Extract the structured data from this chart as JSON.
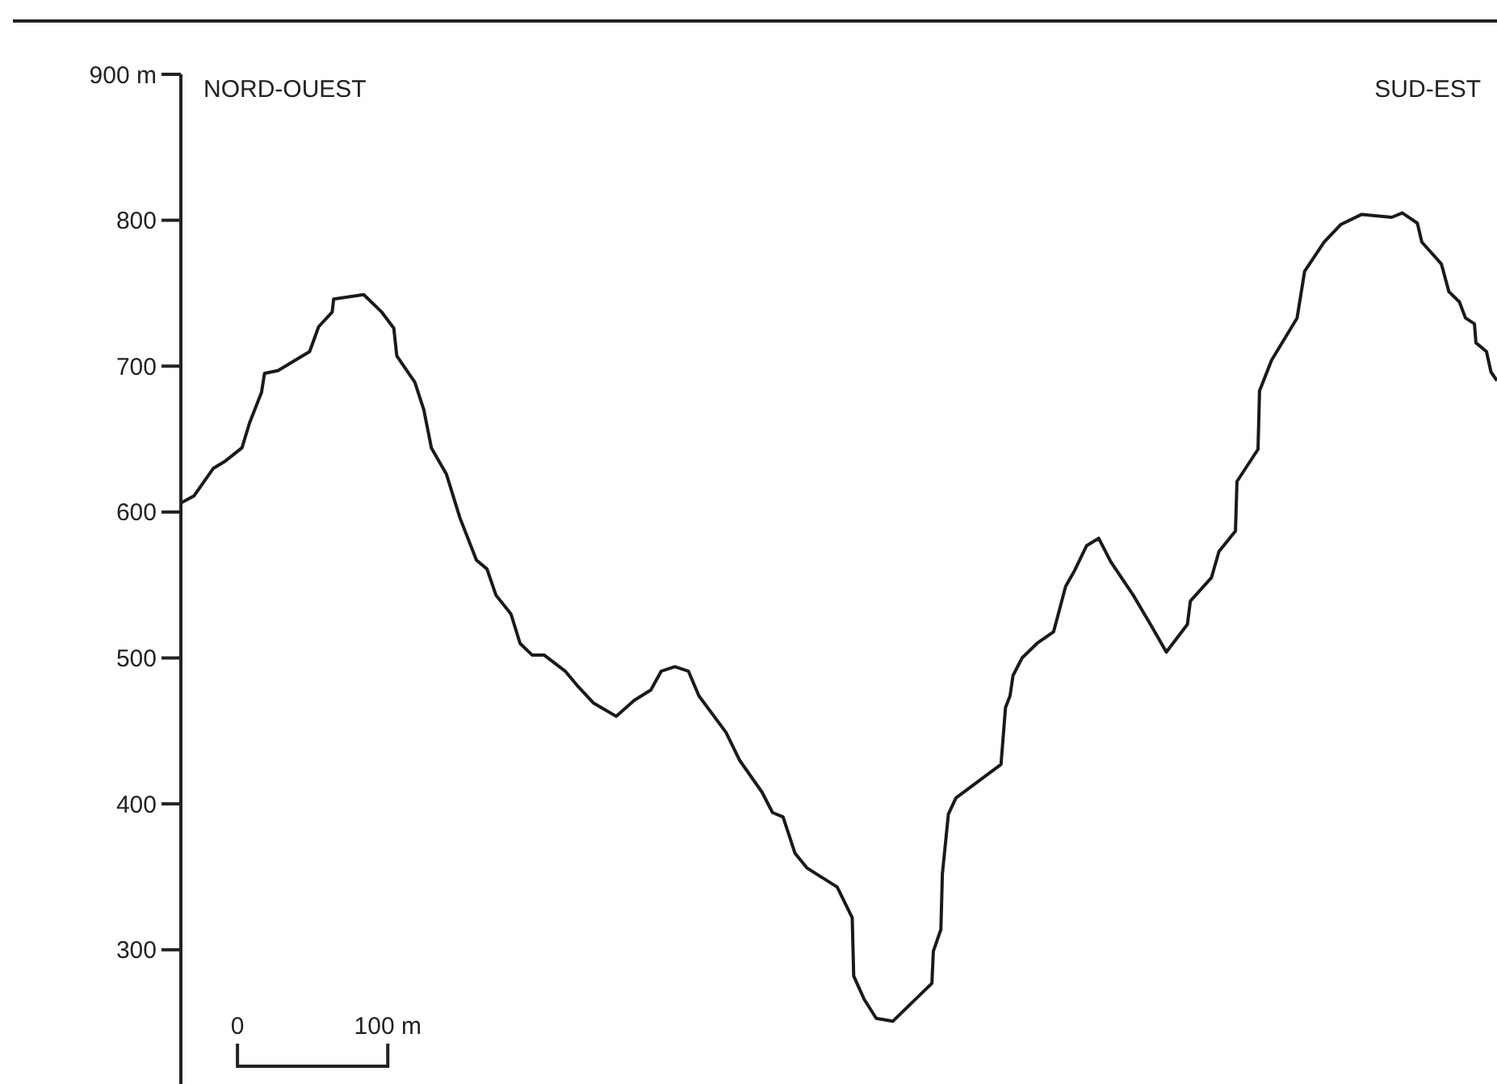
{
  "chart_data": {
    "type": "line",
    "x": [
      -38,
      -29,
      -16,
      -8,
      3,
      8,
      16,
      18,
      27,
      48,
      54,
      63,
      64,
      84,
      96,
      104,
      106,
      118,
      124,
      129,
      139,
      148,
      159,
      166,
      172,
      182,
      188,
      196,
      204,
      218,
      227,
      237,
      252,
      264,
      275,
      282,
      291,
      300,
      307,
      325,
      334,
      349,
      356,
      363,
      371,
      379,
      399,
      409,
      410,
      417,
      425,
      436,
      462,
      463,
      468,
      469,
      473,
      478,
      508,
      511,
      514,
      516,
      522,
      532,
      543,
      551,
      557,
      565,
      573,
      581,
      596,
      608,
      618,
      632,
      634,
      648,
      653,
      664,
      665,
      679,
      680,
      688,
      705,
      710,
      723,
      734,
      748,
      768,
      775,
      785,
      788,
      801,
      806,
      813,
      817,
      823,
      824,
      831,
      834,
      838
    ],
    "series": [
      {
        "color": "#1a1a1a",
        "values": [
          606,
          611,
          630,
          635,
          644,
          661,
          682,
          695,
          697,
          710,
          727,
          737,
          746,
          749,
          737,
          726,
          707,
          689,
          670,
          644,
          626,
          596,
          567,
          561,
          543,
          530,
          510,
          502,
          502,
          491,
          480,
          469,
          460,
          471,
          478,
          491,
          494,
          491,
          474,
          449,
          430,
          408,
          394,
          391,
          366,
          356,
          343,
          322,
          282,
          266,
          253,
          251,
          277,
          299,
          314,
          352,
          393,
          404,
          427,
          466,
          474,
          488,
          500,
          510,
          518,
          549,
          560,
          577,
          582,
          566,
          543,
          522,
          504,
          523,
          539,
          555,
          573,
          587,
          621,
          643,
          683,
          704,
          733,
          765,
          785,
          797,
          804,
          802,
          805,
          798,
          785,
          770,
          751,
          744,
          733,
          729,
          716,
          710,
          696,
          690
        ]
      }
    ],
    "xlim": [
      -158,
      838
    ],
    "xticks": [
      0,
      {
        "value": 100,
        "label": "100 m"
      }
    ],
    "ylim": [
      208,
      900
    ],
    "yticks": [
      300,
      400,
      500,
      600,
      700,
      800,
      {
        "value": 900,
        "label": "900 m"
      }
    ],
    "annotations": [
      "NORD-OUEST",
      "SUD-EST"
    ]
  }
}
